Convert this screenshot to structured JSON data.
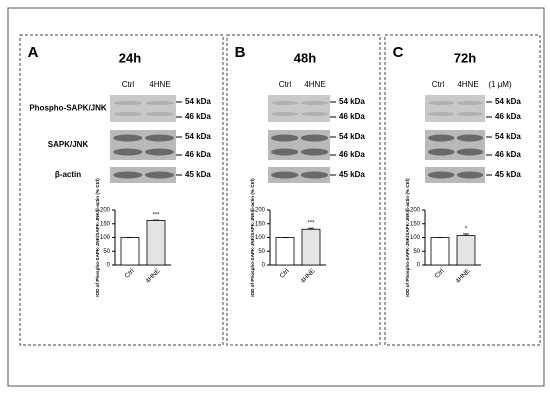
{
  "panels": [
    {
      "letter": "A",
      "columns": [
        "Ctrl",
        "4HNE"
      ],
      "blots": [
        {
          "label": "Phospho-SAPK/JNK",
          "markers": [
            "54 kDa",
            "46 kDa"
          ]
        },
        {
          "label": "SAPK/JNK",
          "markers": [
            "54 kDa",
            "46 kDa"
          ]
        },
        {
          "label": "β-actin",
          "markers": [
            "45 kDa"
          ]
        }
      ]
    },
    {
      "letter": "B",
      "columns": [
        "Ctrl",
        "4HNE"
      ],
      "blots": [
        {
          "markers": [
            "54 kDa",
            "46 kDa"
          ]
        },
        {
          "markers": [
            "54 kDa",
            "46 kDa"
          ]
        },
        {
          "markers": [
            "45 kDa"
          ]
        }
      ]
    },
    {
      "letter": "C",
      "columns": [
        "Ctrl",
        "4HNE",
        "(1 μM)"
      ],
      "blots": [
        {
          "markers": [
            "54 kDa",
            "46 kDa"
          ]
        },
        {
          "markers": [
            "54 kDa",
            "46 kDa"
          ]
        },
        {
          "markers": [
            "45 kDa"
          ]
        }
      ]
    }
  ],
  "chart_data": [
    {
      "type": "bar",
      "title": "24h",
      "ylabel": "IOD of Phospho-SAPK-JNK/SAPK-JNK/β-actin (% Ctrl)",
      "categories": [
        "Ctrl",
        "4HNE"
      ],
      "values": [
        100,
        162
      ],
      "errors": [
        0.5,
        1.5
      ],
      "annotation": "***",
      "ylim": [
        0,
        200
      ],
      "yticks": [
        0,
        50,
        100,
        150,
        200
      ],
      "colors": [
        "#ffffff",
        "#e4e4e4"
      ]
    },
    {
      "type": "bar",
      "title": "48h",
      "ylabel": "IOD of Phospho-SAPK-JNK/SAPK-JNK/β-actin (% Ctrl)",
      "categories": [
        "Ctrl",
        "4HNE"
      ],
      "values": [
        100,
        130
      ],
      "errors": [
        0.5,
        4
      ],
      "annotation": "***",
      "ylim": [
        0,
        200
      ],
      "yticks": [
        0,
        50,
        100,
        150,
        200
      ],
      "colors": [
        "#ffffff",
        "#e4e4e4"
      ]
    },
    {
      "type": "bar",
      "title": "72h",
      "ylabel": "IOD of Phospho-SAPK-JNK/SAPK-JNK/β-actin (% Ctrl)",
      "categories": [
        "Ctrl",
        "4HNE"
      ],
      "values": [
        100,
        107
      ],
      "errors": [
        0.5,
        6
      ],
      "annotation": "*",
      "ylim": [
        0,
        200
      ],
      "yticks": [
        0,
        50,
        100,
        150,
        200
      ],
      "colors": [
        "#ffffff",
        "#e4e4e4"
      ]
    }
  ]
}
